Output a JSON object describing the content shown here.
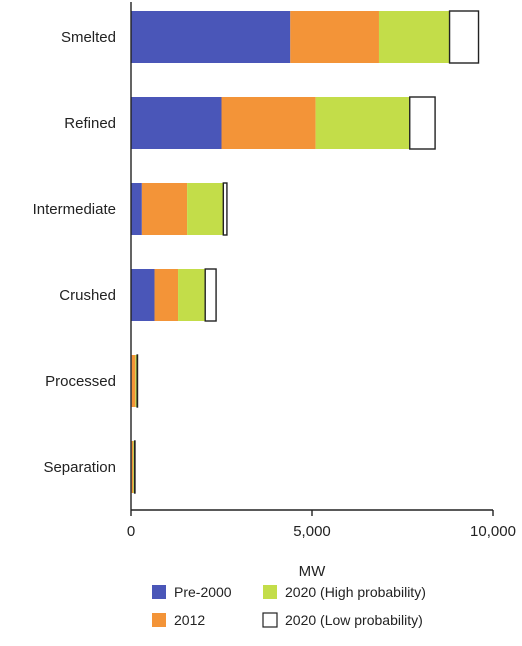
{
  "chart_data": {
    "type": "bar",
    "orientation": "horizontal",
    "stacked": true,
    "categories": [
      "Smelted",
      "Refined",
      "Intermediate",
      "Crushed",
      "Processed",
      "Separation"
    ],
    "series": [
      {
        "name": "Pre-2000",
        "color": "#4a56b8",
        "values": [
          4400,
          2500,
          300,
          650,
          20,
          20
        ]
      },
      {
        "name": "2012",
        "color": "#f39438",
        "values": [
          2450,
          2600,
          1250,
          650,
          100,
          40
        ]
      },
      {
        "name": "2020 (High probability)",
        "color": "#c3dd49",
        "values": [
          1950,
          2600,
          1000,
          750,
          50,
          40
        ]
      },
      {
        "name": "2020 (Low probability)",
        "color": "#ffffff",
        "values": [
          800,
          700,
          100,
          300,
          10,
          10
        ]
      }
    ],
    "xlabel": "MW",
    "ylabel": "",
    "xlim": [
      0,
      10000
    ],
    "xticks": [
      0,
      5000,
      10000
    ],
    "xtick_labels": [
      "0",
      "5,000",
      "10,000"
    ],
    "grid": false,
    "legend_position": "bottom"
  }
}
